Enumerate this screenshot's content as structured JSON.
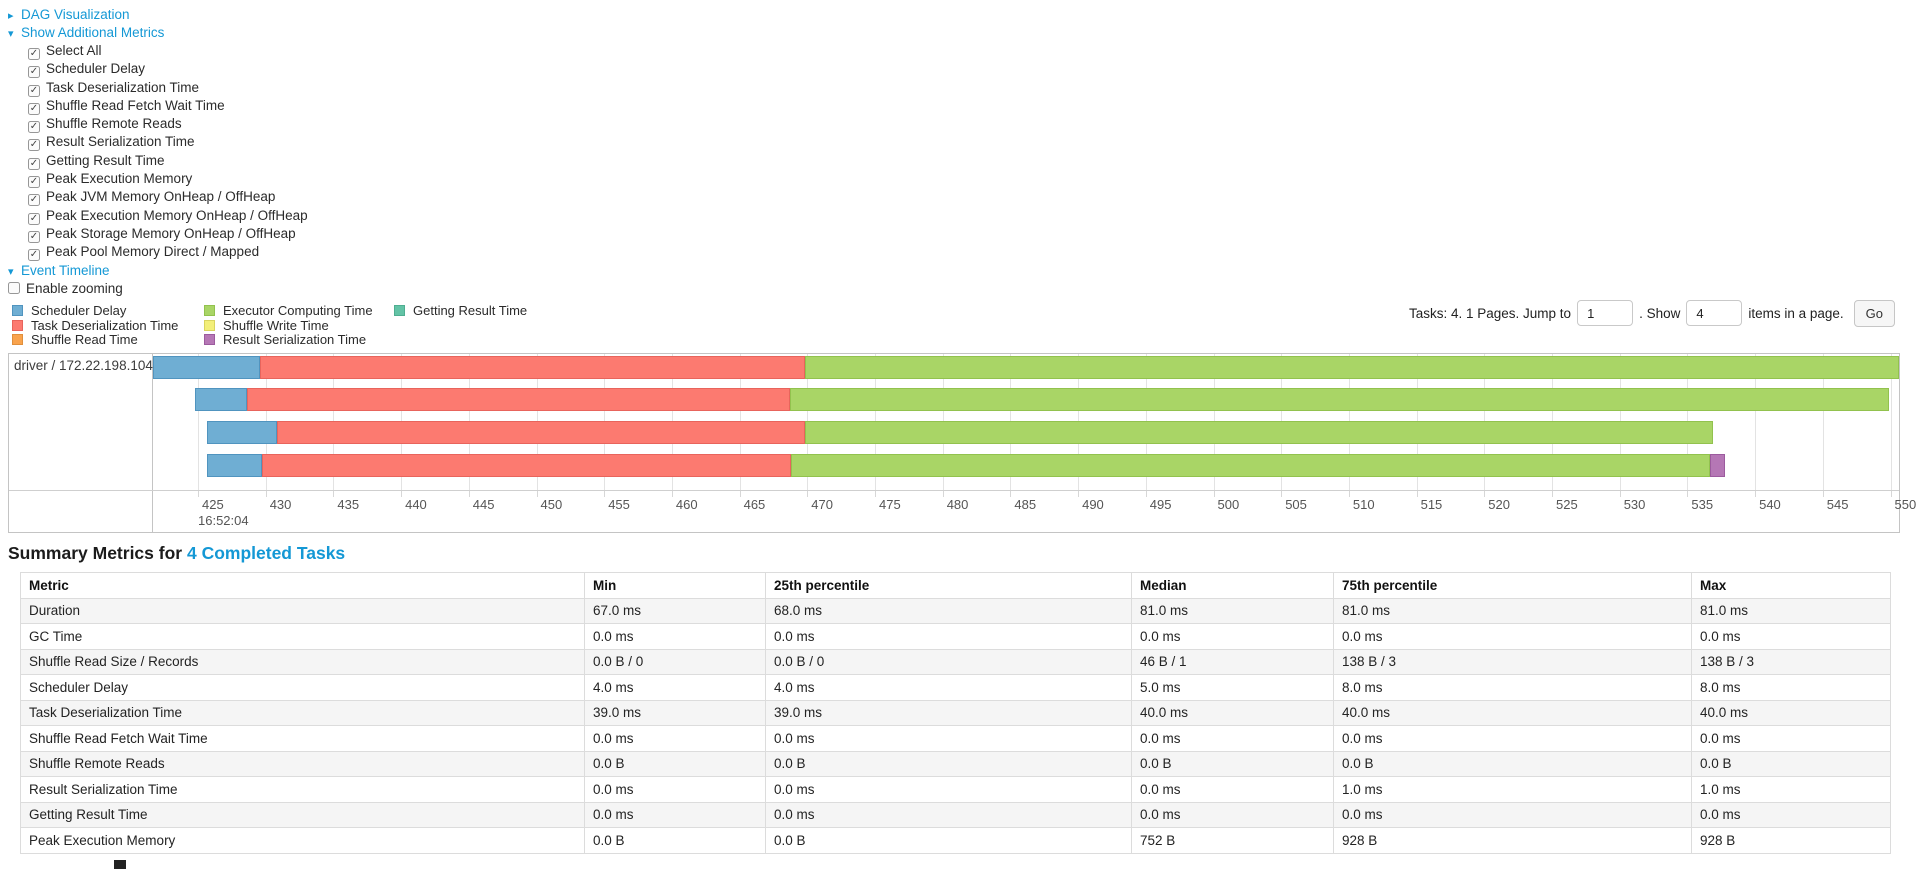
{
  "controls": {
    "dag_toggle": {
      "label": "DAG Visualization",
      "expanded": false
    },
    "metrics_toggle": {
      "label": "Show Additional Metrics",
      "expanded": true
    },
    "metric_checkboxes": [
      {
        "label": "Select All",
        "checked": true
      },
      {
        "label": "Scheduler Delay",
        "checked": true
      },
      {
        "label": "Task Deserialization Time",
        "checked": true
      },
      {
        "label": "Shuffle Read Fetch Wait Time",
        "checked": true
      },
      {
        "label": "Shuffle Remote Reads",
        "checked": true
      },
      {
        "label": "Result Serialization Time",
        "checked": true
      },
      {
        "label": "Getting Result Time",
        "checked": true
      },
      {
        "label": "Peak Execution Memory",
        "checked": true
      },
      {
        "label": "Peak JVM Memory OnHeap / OffHeap",
        "checked": true
      },
      {
        "label": "Peak Execution Memory OnHeap / OffHeap",
        "checked": true
      },
      {
        "label": "Peak Storage Memory OnHeap / OffHeap",
        "checked": true
      },
      {
        "label": "Peak Pool Memory Direct / Mapped",
        "checked": true
      }
    ],
    "event_timeline_toggle": {
      "label": "Event Timeline",
      "expanded": true
    },
    "enable_zooming": {
      "label": "Enable zooming",
      "checked": false
    }
  },
  "pagination": {
    "text_before": "Tasks: 4. 1 Pages. Jump to",
    "jump_value": "1",
    "text_mid": ". Show",
    "show_value": "4",
    "text_after": "items in a page.",
    "go_label": "Go"
  },
  "colors": {
    "scheduler_delay": {
      "fill": "#6FAED3",
      "border": "#5094BF"
    },
    "task_deserialization": {
      "fill": "#FC7A70",
      "border": "#E8645C"
    },
    "shuffle_read": {
      "fill": "#F9A34D",
      "border": "#E08F3C"
    },
    "executor_computing": {
      "fill": "#A9D566",
      "border": "#92C24E"
    },
    "shuffle_write": {
      "fill": "#F3EF79",
      "border": "#D9D45F"
    },
    "result_serialization": {
      "fill": "#B577B5",
      "border": "#9C5B9E"
    },
    "getting_result": {
      "fill": "#63C3A6",
      "border": "#4FAE91"
    },
    "link_blue": "#1498D5"
  },
  "legend_columns": [
    [
      {
        "label": "Scheduler Delay",
        "key": "scheduler_delay"
      },
      {
        "label": "Task Deserialization Time",
        "key": "task_deserialization"
      },
      {
        "label": "Shuffle Read Time",
        "key": "shuffle_read"
      }
    ],
    [
      {
        "label": "Executor Computing Time",
        "key": "executor_computing"
      },
      {
        "label": "Shuffle Write Time",
        "key": "shuffle_write"
      },
      {
        "label": "Result Serialization Time",
        "key": "result_serialization"
      }
    ],
    [
      {
        "label": "Getting Result Time",
        "key": "getting_result"
      }
    ]
  ],
  "chart_data": {
    "type": "timeline",
    "group_label": "driver / 172.22.198.104",
    "axis": {
      "tick_labels_ms": [
        425,
        430,
        435,
        440,
        445,
        450,
        455,
        460,
        465,
        470,
        475,
        480,
        485,
        490,
        495,
        500,
        505,
        510,
        515,
        520,
        525,
        530,
        535,
        540,
        545,
        550
      ],
      "major_time_label": "16:52:04",
      "visible_range_ms": [
        421.4,
        551.3
      ]
    },
    "tasks": [
      {
        "row": 1,
        "segments": [
          {
            "key": "scheduler_delay",
            "start": 421.7,
            "end": 429.6
          },
          {
            "key": "task_deserialization",
            "start": 429.6,
            "end": 469.8
          },
          {
            "key": "executor_computing",
            "start": 469.8,
            "end": 550.8
          }
        ]
      },
      {
        "row": 2,
        "segments": [
          {
            "key": "scheduler_delay",
            "start": 424.8,
            "end": 428.6
          },
          {
            "key": "task_deserialization",
            "start": 428.6,
            "end": 468.7
          },
          {
            "key": "executor_computing",
            "start": 468.7,
            "end": 549.9
          }
        ]
      },
      {
        "row": 3,
        "segments": [
          {
            "key": "scheduler_delay",
            "start": 425.7,
            "end": 430.8
          },
          {
            "key": "task_deserialization",
            "start": 430.8,
            "end": 469.8
          },
          {
            "key": "executor_computing",
            "start": 469.8,
            "end": 536.9
          }
        ]
      },
      {
        "row": 4,
        "segments": [
          {
            "key": "scheduler_delay",
            "start": 425.7,
            "end": 429.7
          },
          {
            "key": "task_deserialization",
            "start": 429.7,
            "end": 468.8
          },
          {
            "key": "executor_computing",
            "start": 468.8,
            "end": 536.7
          },
          {
            "key": "result_serialization",
            "start": 536.7,
            "end": 537.8
          }
        ]
      }
    ]
  },
  "summary": {
    "title_prefix": "Summary Metrics for",
    "title_link": "4 Completed Tasks",
    "columns": [
      "Metric",
      "Min",
      "25th percentile",
      "Median",
      "75th percentile",
      "Max"
    ],
    "rows": [
      {
        "metric": "Duration",
        "values": [
          "67.0 ms",
          "68.0 ms",
          "81.0 ms",
          "81.0 ms",
          "81.0 ms"
        ]
      },
      {
        "metric": "GC Time",
        "values": [
          "0.0 ms",
          "0.0 ms",
          "0.0 ms",
          "0.0 ms",
          "0.0 ms"
        ]
      },
      {
        "metric": "Shuffle Read Size / Records",
        "values": [
          "0.0 B / 0",
          "0.0 B / 0",
          "46 B / 1",
          "138 B / 3",
          "138 B / 3"
        ]
      },
      {
        "metric": "Scheduler Delay",
        "values": [
          "4.0 ms",
          "4.0 ms",
          "5.0 ms",
          "8.0 ms",
          "8.0 ms"
        ]
      },
      {
        "metric": "Task Deserialization Time",
        "values": [
          "39.0 ms",
          "39.0 ms",
          "40.0 ms",
          "40.0 ms",
          "40.0 ms"
        ]
      },
      {
        "metric": "Shuffle Read Fetch Wait Time",
        "values": [
          "0.0 ms",
          "0.0 ms",
          "0.0 ms",
          "0.0 ms",
          "0.0 ms"
        ]
      },
      {
        "metric": "Shuffle Remote Reads",
        "values": [
          "0.0 B",
          "0.0 B",
          "0.0 B",
          "0.0 B",
          "0.0 B"
        ]
      },
      {
        "metric": "Result Serialization Time",
        "values": [
          "0.0 ms",
          "0.0 ms",
          "0.0 ms",
          "1.0 ms",
          "1.0 ms"
        ]
      },
      {
        "metric": "Getting Result Time",
        "values": [
          "0.0 ms",
          "0.0 ms",
          "0.0 ms",
          "0.0 ms",
          "0.0 ms"
        ]
      },
      {
        "metric": "Peak Execution Memory",
        "values": [
          "0.0 B",
          "0.0 B",
          "752 B",
          "928 B",
          "928 B"
        ]
      }
    ]
  }
}
